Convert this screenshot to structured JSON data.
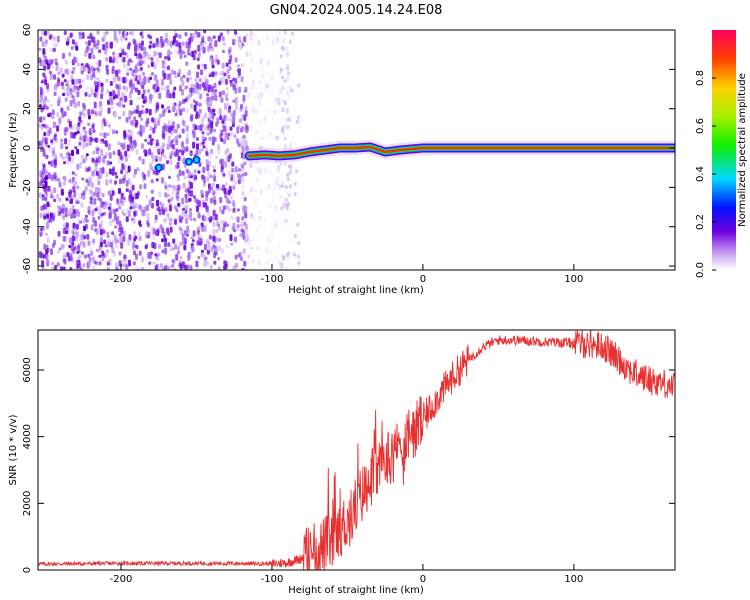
{
  "title": "GN04.2024.005.14.24.E08",
  "chart_data": [
    {
      "type": "heatmap",
      "xlabel": "Height of straight line (km)",
      "ylabel": "Frequency (Hz)",
      "xlim": [
        -255,
        167
      ],
      "ylim": [
        -62,
        60
      ],
      "xticks": [
        "-200",
        "-100",
        "0",
        "100"
      ],
      "yticks": [
        "60",
        "40",
        "20",
        "0",
        "-20",
        "-40",
        "-60"
      ],
      "grid": false,
      "description_of_data": "noise region",
      "noise_region_x": [
        -255,
        -100
      ],
      "signal_line": {
        "x": [
          -115,
          -105,
          -95,
          -85,
          -75,
          -65,
          -55,
          -45,
          -35,
          -25,
          -15,
          0,
          50,
          100,
          167
        ],
        "y": [
          -4,
          -3.5,
          -4,
          -3.5,
          -2,
          -1,
          0,
          0,
          0.5,
          -2,
          -1,
          0,
          0,
          0,
          0
        ]
      },
      "colorbar": {
        "label": "Normalized spectral amplitude",
        "range": [
          0,
          1
        ],
        "ticks": [
          "0.0",
          "0.2",
          "0.4",
          "0.6",
          "0.8"
        ]
      }
    },
    {
      "type": "line",
      "xlabel": "Height of straight line (km)",
      "ylabel": "SNR (10 * v/v)",
      "xlim": [
        -255,
        167
      ],
      "ylim": [
        0,
        7200
      ],
      "xticks": [
        "-200",
        "-100",
        "0",
        "100"
      ],
      "yticks": [
        "0",
        "2000",
        "4000",
        "6000"
      ],
      "grid": false,
      "series": [
        {
          "color": "#e83030",
          "x": [
            -255,
            -200,
            -150,
            -100,
            -90,
            -80,
            -70,
            -60,
            -50,
            -40,
            -35,
            -30,
            -25,
            -20,
            -15,
            -10,
            -5,
            0,
            10,
            20,
            30,
            40,
            50,
            60,
            80,
            100,
            110,
            120,
            130,
            140,
            150,
            160,
            167
          ],
          "y": [
            180,
            200,
            200,
            190,
            220,
            350,
            600,
            900,
            1500,
            2300,
            2800,
            3000,
            3300,
            3500,
            3700,
            3900,
            4200,
            4500,
            5200,
            5800,
            6300,
            6700,
            6900,
            6900,
            6850,
            6800,
            6800,
            6700,
            6300,
            5900,
            5700,
            5600,
            5500
          ]
        }
      ]
    }
  ]
}
